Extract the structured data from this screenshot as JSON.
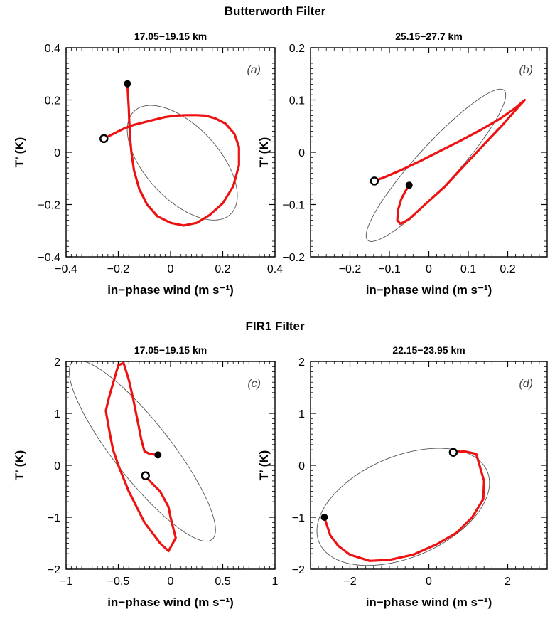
{
  "section_titles": {
    "top": "Butterworth Filter",
    "bottom": "FIR1 Filter"
  },
  "colors": {
    "trajectory": "#ee1111",
    "ellipse": "#555555",
    "axes": "#000000",
    "marker": "#000000"
  },
  "chart_data": [
    {
      "type": "line",
      "panel": "(a)",
      "title": "17.05−19.15 km",
      "xlabel": "in−phase wind (m s⁻¹)",
      "ylabel": "T’ (K)",
      "xlim": [
        -0.4,
        0.4
      ],
      "ylim": [
        -0.4,
        0.4
      ],
      "xticks": [
        -0.4,
        -0.2,
        0,
        0.2,
        0.4
      ],
      "xtick_labels": [
        "−0.4",
        "−0.2",
        "0",
        "0.2",
        "0.4"
      ],
      "yticks": [
        -0.4,
        -0.2,
        0,
        0.2,
        0.4
      ],
      "ytick_labels": [
        "−0.4",
        "−0.2",
        "0",
        "0.2",
        "0.4"
      ],
      "series": [
        {
          "role": "hodograph",
          "style": "red-thick",
          "x": [
            -0.165,
            -0.163,
            -0.16,
            -0.158,
            -0.155,
            -0.15,
            -0.14,
            -0.12,
            -0.09,
            -0.05,
            0.0,
            0.05,
            0.1,
            0.15,
            0.2,
            0.24,
            0.262,
            0.262,
            0.245,
            0.21,
            0.17,
            0.135,
            0.1,
            0.06,
            0.02,
            -0.02,
            -0.06,
            -0.1,
            -0.14,
            -0.17,
            -0.18,
            -0.19,
            -0.2,
            -0.22,
            -0.24,
            -0.255
          ],
          "y": [
            0.262,
            0.22,
            0.17,
            0.12,
            0.06,
            0.0,
            -0.07,
            -0.14,
            -0.2,
            -0.245,
            -0.27,
            -0.28,
            -0.27,
            -0.24,
            -0.195,
            -0.13,
            -0.05,
            0.02,
            0.07,
            0.11,
            0.13,
            0.14,
            0.142,
            0.142,
            0.14,
            0.135,
            0.125,
            0.115,
            0.105,
            0.094,
            0.09,
            0.085,
            0.08,
            0.07,
            0.06,
            0.052
          ]
        },
        {
          "role": "fitted-ellipse",
          "style": "gray-thin",
          "ellipse": {
            "cx": 0.045,
            "cy": -0.04,
            "rx": 0.27,
            "ry": 0.14,
            "angle_deg": -47
          }
        }
      ],
      "markers": [
        {
          "kind": "filled",
          "x": -0.165,
          "y": 0.262
        },
        {
          "kind": "open",
          "x": -0.255,
          "y": 0.052
        }
      ]
    },
    {
      "type": "line",
      "panel": "(b)",
      "title": "25.15−27.7 km",
      "xlabel": "in−phase wind (m s⁻¹)",
      "ylabel": "T’ (K)",
      "xlim": [
        -0.3,
        0.3
      ],
      "ylim": [
        -0.2,
        0.2
      ],
      "xticks": [
        -0.2,
        -0.1,
        0,
        0.1,
        0.2
      ],
      "xtick_labels": [
        "−0.2",
        "−0.1",
        "0",
        "0.1",
        "0.2"
      ],
      "yticks": [
        -0.2,
        -0.1,
        0,
        0.1,
        0.2
      ],
      "ytick_labels": [
        "−0.2",
        "−0.1",
        "0",
        "0.1",
        "0.2"
      ],
      "series": [
        {
          "role": "hodograph",
          "style": "red-thick",
          "x": [
            -0.05,
            -0.06,
            -0.07,
            -0.078,
            -0.08,
            -0.072,
            -0.05,
            -0.01,
            0.04,
            0.09,
            0.14,
            0.19,
            0.225,
            0.243,
            0.24,
            0.22,
            0.18,
            0.13,
            0.08,
            0.03,
            -0.02,
            -0.07,
            -0.11,
            -0.138
          ],
          "y": [
            -0.063,
            -0.075,
            -0.09,
            -0.11,
            -0.13,
            -0.137,
            -0.128,
            -0.1,
            -0.066,
            -0.025,
            0.015,
            0.055,
            0.085,
            0.1,
            0.098,
            0.085,
            0.064,
            0.042,
            0.022,
            0.003,
            -0.016,
            -0.034,
            -0.047,
            -0.055
          ]
        },
        {
          "role": "fitted-ellipse",
          "style": "gray-thin",
          "ellipse": {
            "cx": 0.018,
            "cy": -0.025,
            "rx": 0.225,
            "ry": 0.044,
            "angle_deg": 39
          }
        }
      ],
      "markers": [
        {
          "kind": "filled",
          "x": -0.05,
          "y": -0.063
        },
        {
          "kind": "open",
          "x": -0.138,
          "y": -0.055
        }
      ]
    },
    {
      "type": "line",
      "panel": "(c)",
      "title": "17.05−19.15 km",
      "xlabel": "in−phase wind (m s⁻¹)",
      "ylabel": "T’ (K)",
      "xlim": [
        -1,
        1
      ],
      "ylim": [
        -2,
        2
      ],
      "xticks": [
        -1,
        -0.5,
        0,
        0.5,
        1
      ],
      "xtick_labels": [
        "−1",
        "−0.5",
        "0",
        "0.5",
        "1"
      ],
      "yticks": [
        -2,
        -1,
        0,
        1,
        2
      ],
      "ytick_labels": [
        "−2",
        "−1",
        "0",
        "1",
        "2"
      ],
      "series": [
        {
          "role": "hodograph",
          "style": "red-thick",
          "x": [
            -0.12,
            -0.2,
            -0.25,
            -0.28,
            -0.32,
            -0.36,
            -0.4,
            -0.45,
            -0.5,
            -0.59,
            -0.62,
            -0.58,
            -0.55,
            -0.5,
            -0.4,
            -0.25,
            -0.1,
            -0.02,
            0.05,
            0.0,
            -0.02,
            -0.1,
            -0.2,
            -0.24
          ],
          "y": [
            0.2,
            0.22,
            0.27,
            0.5,
            0.9,
            1.3,
            1.65,
            1.97,
            1.93,
            1.3,
            1.05,
            0.6,
            0.3,
            0.0,
            -0.5,
            -1.1,
            -1.5,
            -1.65,
            -1.4,
            -1.0,
            -0.8,
            -0.5,
            -0.3,
            -0.2
          ]
        },
        {
          "role": "fitted-ellipse",
          "style": "gray-thin",
          "ellipse": {
            "cx": -0.27,
            "cy": 0.28,
            "rx": 1.85,
            "ry": 0.32,
            "angle_deg": -70
          }
        }
      ],
      "markers": [
        {
          "kind": "filled",
          "x": -0.12,
          "y": 0.2
        },
        {
          "kind": "open",
          "x": -0.24,
          "y": -0.2
        }
      ]
    },
    {
      "type": "line",
      "panel": "(d)",
      "title": "22.15−23.95 km",
      "xlabel": "in−phase wind (m s⁻¹)",
      "ylabel": "T’ (K)",
      "xlim": [
        -3,
        3
      ],
      "ylim": [
        -2,
        2
      ],
      "xticks": [
        -2,
        0,
        2
      ],
      "xtick_labels": [
        "−2",
        "0",
        "2"
      ],
      "yticks": [
        -2,
        -1,
        0,
        1,
        2
      ],
      "ytick_labels": [
        "−2",
        "−1",
        "0",
        "1",
        "2"
      ],
      "series": [
        {
          "role": "hodograph",
          "style": "red-thick",
          "x": [
            0.62,
            0.9,
            1.2,
            1.4,
            1.38,
            1.1,
            0.7,
            0.2,
            -0.4,
            -1.0,
            -1.5,
            -2.0,
            -2.3,
            -2.5,
            -2.65
          ],
          "y": [
            0.25,
            0.27,
            0.22,
            -0.3,
            -0.65,
            -1.0,
            -1.3,
            -1.52,
            -1.72,
            -1.82,
            -1.84,
            -1.72,
            -1.55,
            -1.35,
            -1.0
          ]
        },
        {
          "role": "fitted-ellipse",
          "style": "gray-thin",
          "ellipse": {
            "cx": -0.65,
            "cy": -0.8,
            "rx": 2.25,
            "ry": 1.0,
            "angle_deg": 15
          }
        }
      ],
      "markers": [
        {
          "kind": "filled",
          "x": -2.65,
          "y": -1.0
        },
        {
          "kind": "open",
          "x": 0.62,
          "y": 0.25
        }
      ]
    }
  ]
}
